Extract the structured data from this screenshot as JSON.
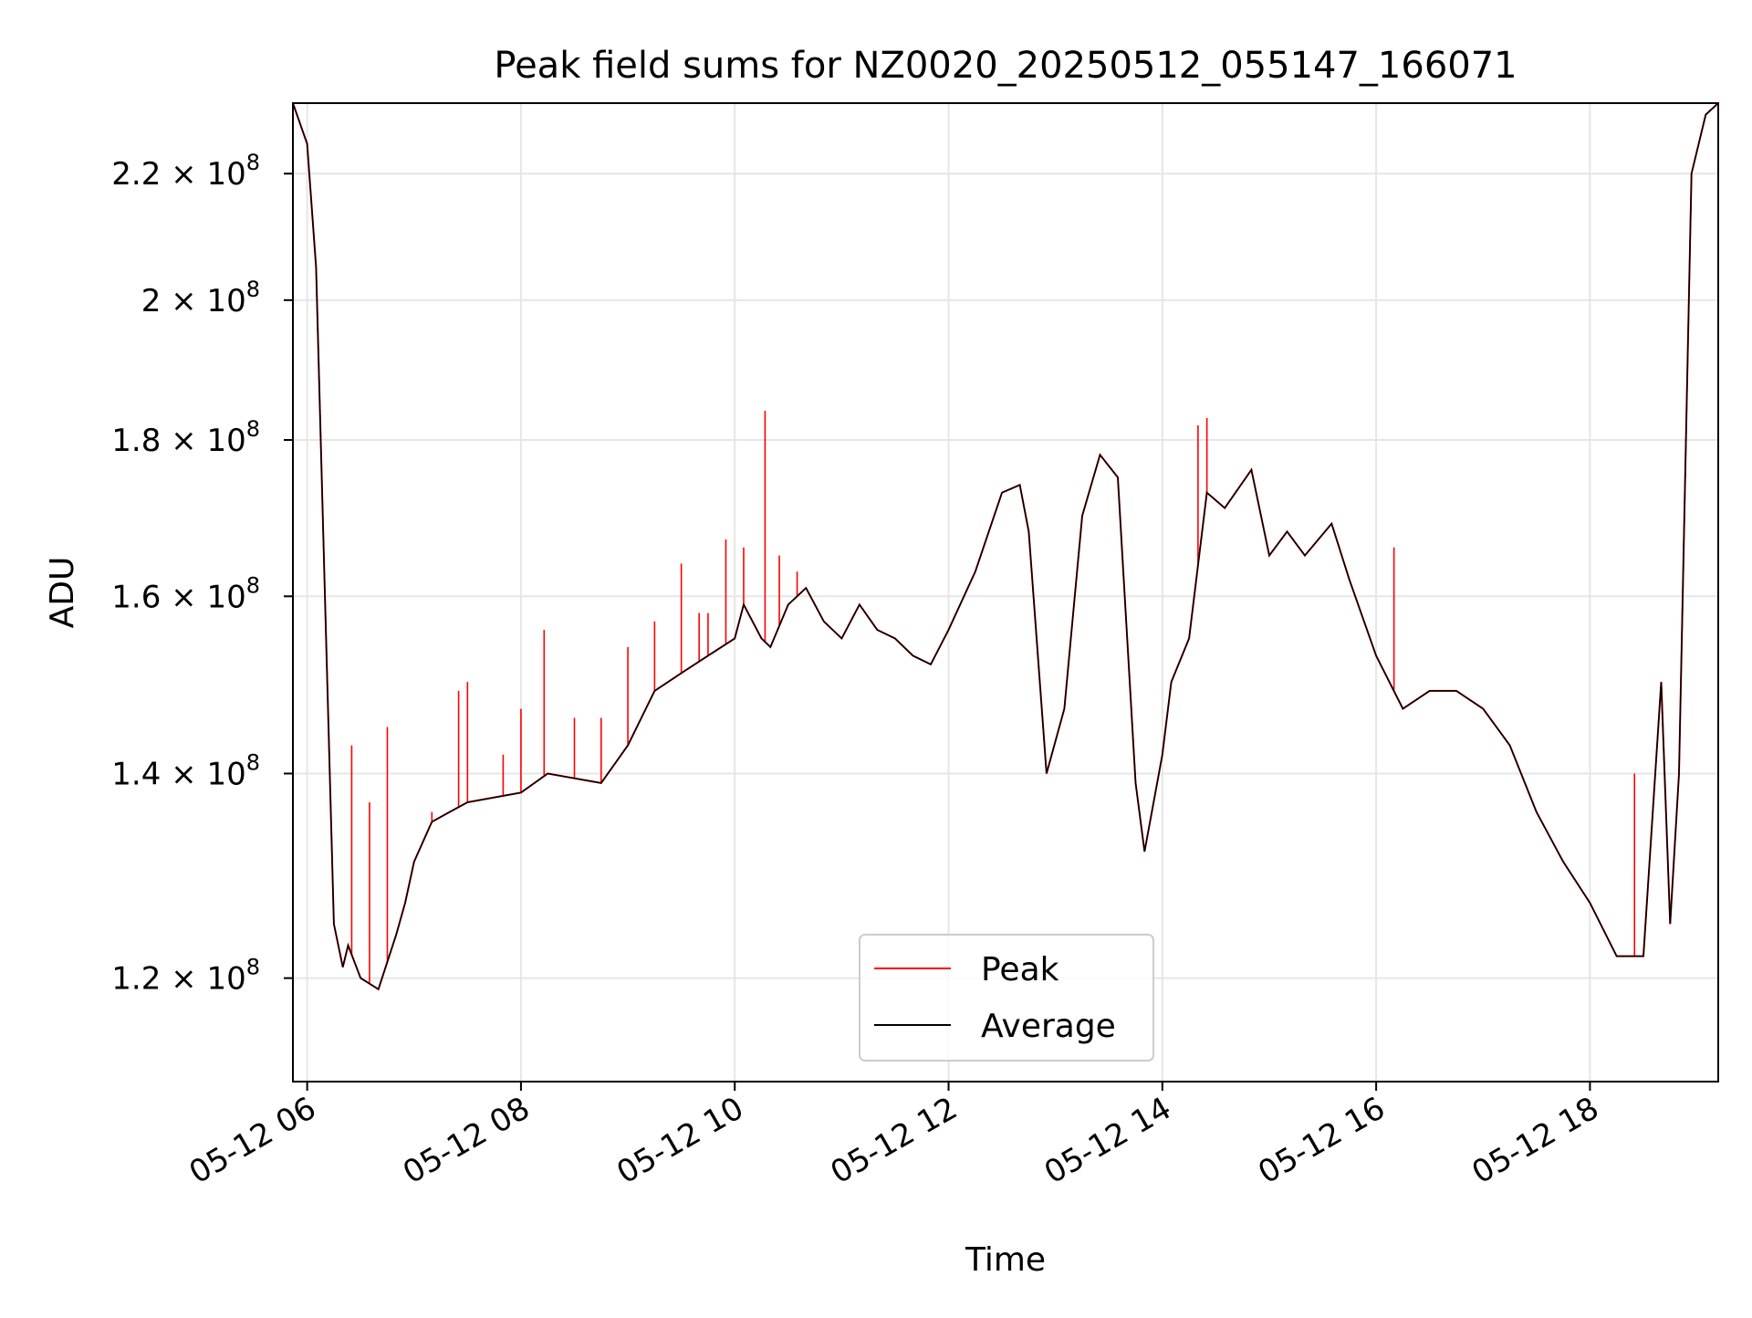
{
  "chart_data": {
    "type": "line",
    "title": "Peak field sums for NZ0020_20250512_055147_166071",
    "xlabel": "Time",
    "ylabel": "ADU",
    "yscale": "log",
    "grid": true,
    "legend_position": "lower center",
    "xlim": [
      "2025-05-12 05:52",
      "2025-05-12 19:12"
    ],
    "ylim": [
      111000000,
      232000000
    ],
    "x_ticks": [
      {
        "value": "2025-05-12 06:00",
        "label": "05-12 06"
      },
      {
        "value": "2025-05-12 08:00",
        "label": "05-12 08"
      },
      {
        "value": "2025-05-12 10:00",
        "label": "05-12 10"
      },
      {
        "value": "2025-05-12 12:00",
        "label": "05-12 12"
      },
      {
        "value": "2025-05-12 14:00",
        "label": "05-12 14"
      },
      {
        "value": "2025-05-12 16:00",
        "label": "05-12 16"
      },
      {
        "value": "2025-05-12 18:00",
        "label": "05-12 18"
      }
    ],
    "y_ticks": [
      {
        "value": 120000000,
        "mantissa": "1.2",
        "exponent": "8"
      },
      {
        "value": 140000000,
        "mantissa": "1.4",
        "exponent": "8"
      },
      {
        "value": 160000000,
        "mantissa": "1.6",
        "exponent": "8"
      },
      {
        "value": 180000000,
        "mantissa": "1.8",
        "exponent": "8"
      },
      {
        "value": 200000000,
        "mantissa": "2",
        "exponent": "8"
      },
      {
        "value": 220000000,
        "mantissa": "2.2",
        "exponent": "8"
      }
    ],
    "series": [
      {
        "name": "Peak",
        "color": "#ff0000",
        "spikes": [
          [
            "2025-05-12 06:25",
            143000000
          ],
          [
            "2025-05-12 06:35",
            137000000
          ],
          [
            "2025-05-12 06:45",
            145000000
          ],
          [
            "2025-05-12 07:10",
            136000000
          ],
          [
            "2025-05-12 07:25",
            149000000
          ],
          [
            "2025-05-12 07:30",
            150000000
          ],
          [
            "2025-05-12 07:50",
            142000000
          ],
          [
            "2025-05-12 08:00",
            147000000
          ],
          [
            "2025-05-12 08:13",
            156000000
          ],
          [
            "2025-05-12 08:30",
            146000000
          ],
          [
            "2025-05-12 08:45",
            146000000
          ],
          [
            "2025-05-12 09:00",
            154000000
          ],
          [
            "2025-05-12 09:15",
            157000000
          ],
          [
            "2025-05-12 09:30",
            164000000
          ],
          [
            "2025-05-12 09:40",
            158000000
          ],
          [
            "2025-05-12 09:45",
            158000000
          ],
          [
            "2025-05-12 09:55",
            167000000
          ],
          [
            "2025-05-12 10:05",
            166000000
          ],
          [
            "2025-05-12 10:17",
            184000000
          ],
          [
            "2025-05-12 10:25",
            165000000
          ],
          [
            "2025-05-12 10:35",
            163000000
          ],
          [
            "2025-05-12 14:20",
            182000000
          ],
          [
            "2025-05-12 14:25",
            183000000
          ],
          [
            "2025-05-12 16:10",
            166000000
          ],
          [
            "2025-05-12 18:25",
            140000000
          ]
        ]
      },
      {
        "name": "Average",
        "color": "#000000",
        "x": [
          "2025-05-12 05:52",
          "2025-05-12 06:00",
          "2025-05-12 06:05",
          "2025-05-12 06:10",
          "2025-05-12 06:15",
          "2025-05-12 06:20",
          "2025-05-12 06:23",
          "2025-05-12 06:30",
          "2025-05-12 06:40",
          "2025-05-12 06:50",
          "2025-05-12 06:55",
          "2025-05-12 07:00",
          "2025-05-12 07:10",
          "2025-05-12 07:20",
          "2025-05-12 07:30",
          "2025-05-12 08:00",
          "2025-05-12 08:15",
          "2025-05-12 08:45",
          "2025-05-12 09:00",
          "2025-05-12 09:15",
          "2025-05-12 09:30",
          "2025-05-12 09:45",
          "2025-05-12 10:00",
          "2025-05-12 10:05",
          "2025-05-12 10:15",
          "2025-05-12 10:20",
          "2025-05-12 10:30",
          "2025-05-12 10:40",
          "2025-05-12 10:50",
          "2025-05-12 11:00",
          "2025-05-12 11:10",
          "2025-05-12 11:20",
          "2025-05-12 11:30",
          "2025-05-12 11:40",
          "2025-05-12 11:50",
          "2025-05-12 12:00",
          "2025-05-12 12:15",
          "2025-05-12 12:30",
          "2025-05-12 12:40",
          "2025-05-12 12:45",
          "2025-05-12 12:55",
          "2025-05-12 13:05",
          "2025-05-12 13:15",
          "2025-05-12 13:25",
          "2025-05-12 13:35",
          "2025-05-12 13:45",
          "2025-05-12 13:50",
          "2025-05-12 14:00",
          "2025-05-12 14:05",
          "2025-05-12 14:15",
          "2025-05-12 14:25",
          "2025-05-12 14:35",
          "2025-05-12 14:50",
          "2025-05-12 15:00",
          "2025-05-12 15:10",
          "2025-05-12 15:20",
          "2025-05-12 15:35",
          "2025-05-12 15:45",
          "2025-05-12 16:00",
          "2025-05-12 16:15",
          "2025-05-12 16:30",
          "2025-05-12 16:45",
          "2025-05-12 17:00",
          "2025-05-12 17:15",
          "2025-05-12 17:30",
          "2025-05-12 17:45",
          "2025-05-12 18:00",
          "2025-05-12 18:15",
          "2025-05-12 18:30",
          "2025-05-12 18:40",
          "2025-05-12 18:45",
          "2025-05-12 18:50",
          "2025-05-12 18:57",
          "2025-05-12 19:05",
          "2025-05-12 19:12"
        ],
        "values": [
          232000000,
          225000000,
          205000000,
          160000000,
          125000000,
          121000000,
          123000000,
          120000000,
          119000000,
          124000000,
          127000000,
          131000000,
          135000000,
          136000000,
          137000000,
          138000000,
          140000000,
          139000000,
          143000000,
          149000000,
          151000000,
          153000000,
          155000000,
          159000000,
          155000000,
          154000000,
          159000000,
          161000000,
          157000000,
          155000000,
          159000000,
          156000000,
          155000000,
          153000000,
          152000000,
          156000000,
          163000000,
          173000000,
          174000000,
          168000000,
          140000000,
          147000000,
          170000000,
          178000000,
          175000000,
          139000000,
          132000000,
          142000000,
          150000000,
          155000000,
          173000000,
          171000000,
          176000000,
          165000000,
          168000000,
          165000000,
          169000000,
          162000000,
          153000000,
          147000000,
          149000000,
          149000000,
          147000000,
          143000000,
          136000000,
          131000000,
          127000000,
          122000000,
          122000000,
          150000000,
          125000000,
          140000000,
          220000000,
          230000000,
          232000000
        ]
      }
    ]
  }
}
